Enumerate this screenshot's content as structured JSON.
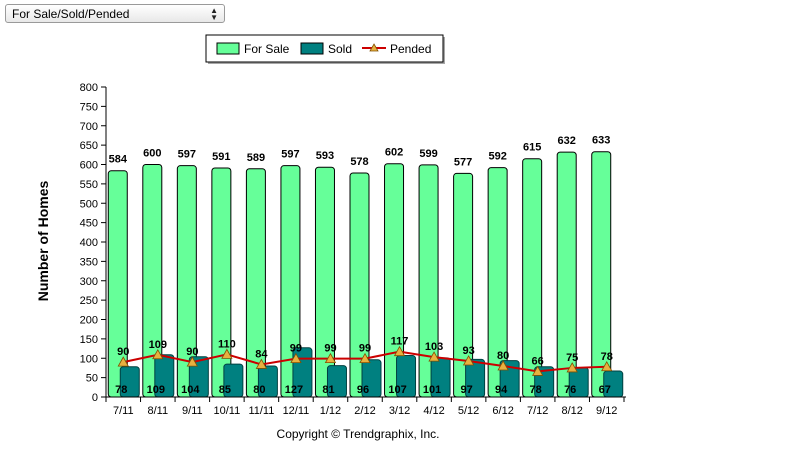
{
  "dropdown": {
    "selected": "For Sale/Sold/Pended"
  },
  "chart_data": {
    "type": "bar",
    "categories": [
      "7/11",
      "8/11",
      "9/11",
      "10/11",
      "11/11",
      "12/11",
      "1/12",
      "2/12",
      "3/12",
      "4/12",
      "5/12",
      "6/12",
      "7/12",
      "8/12",
      "9/12"
    ],
    "series": [
      {
        "name": "For Sale",
        "type": "bar",
        "color": "#66ff99",
        "values": [
          584,
          600,
          597,
          591,
          589,
          597,
          593,
          578,
          602,
          599,
          577,
          592,
          615,
          632,
          633
        ]
      },
      {
        "name": "Sold",
        "type": "bar",
        "color": "#008080",
        "values": [
          78,
          109,
          104,
          85,
          80,
          127,
          81,
          96,
          107,
          101,
          97,
          94,
          78,
          76,
          67
        ]
      },
      {
        "name": "Pended",
        "type": "line",
        "color": "#cc0000",
        "marker_color": "#e8b040",
        "values": [
          90,
          109,
          90,
          110,
          84,
          99,
          99,
          99,
          117,
          103,
          93,
          80,
          66,
          75,
          78
        ]
      }
    ],
    "ylabel": "Number of Homes",
    "ylim": [
      0,
      800
    ],
    "yticks": [
      0,
      50,
      100,
      150,
      200,
      250,
      300,
      350,
      400,
      450,
      500,
      550,
      600,
      650,
      700,
      750,
      800
    ],
    "legend": "top-center",
    "footer": "Copyright © Trendgraphix, Inc."
  }
}
